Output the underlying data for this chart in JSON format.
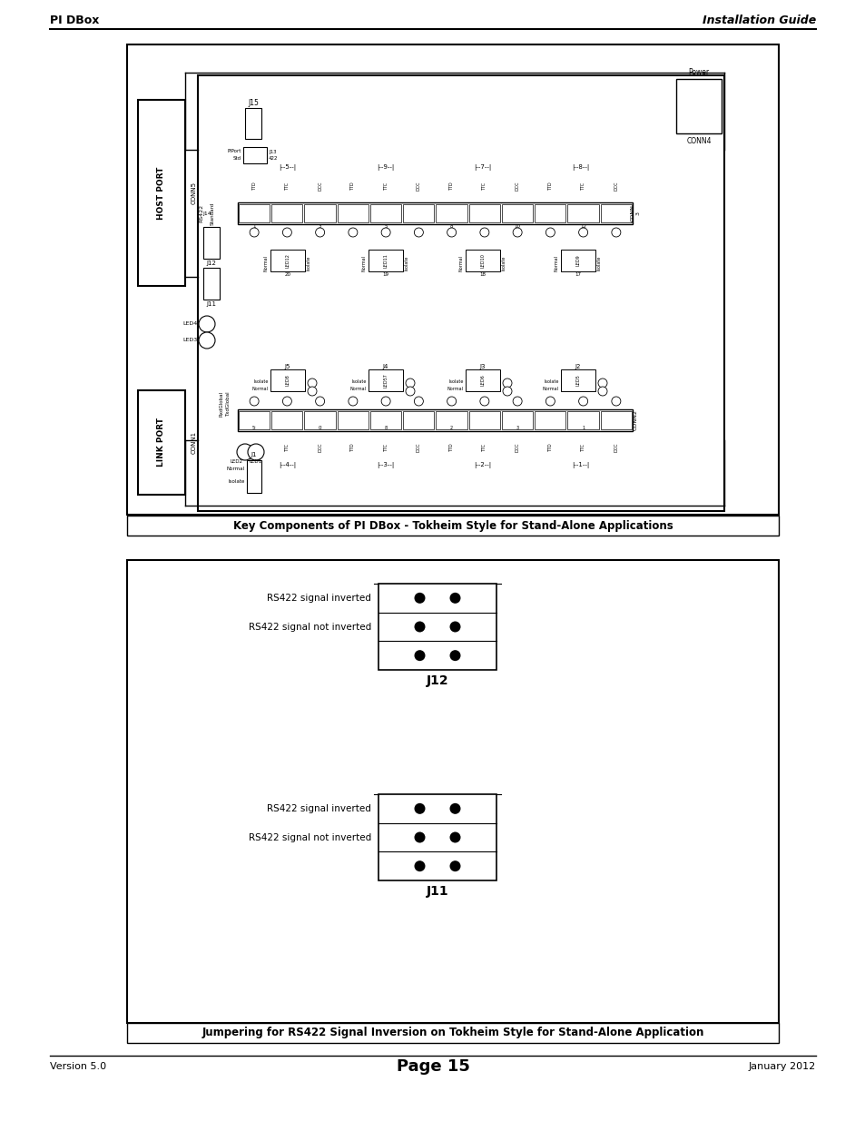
{
  "page_title_left": "PI DBox",
  "page_title_right": "Installation Guide",
  "page_num": "Page 15",
  "footer_left": "Version 5.0",
  "footer_right": "January 2012",
  "box1_caption": "Key Components of PI DBox - Tokheim Style for Stand-Alone Applications",
  "box2_caption": "Jumpering for RS422 Signal Inversion on Tokheim Style for Stand-Alone Application",
  "bg_color": "#ffffff"
}
